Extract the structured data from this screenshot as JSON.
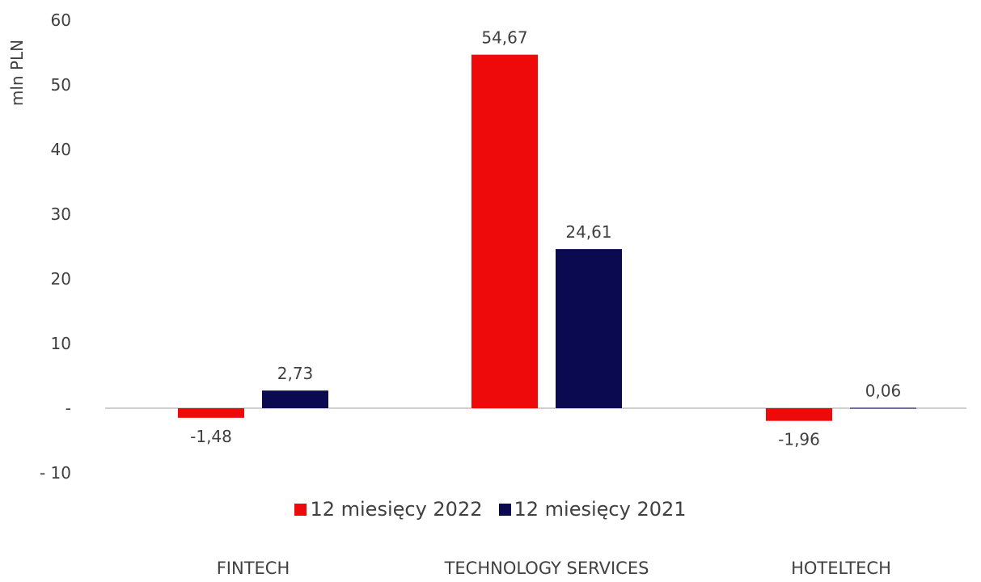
{
  "chart_data": {
    "type": "bar",
    "categories": [
      "FINTECH",
      "TECHNOLOGY SERVICES",
      "HOTELTECH"
    ],
    "series": [
      {
        "name": "12 miesięcy 2022",
        "values": [
          -1.48,
          54.67,
          -1.96
        ],
        "labels": [
          "-1,48",
          "54,67",
          "-1,96"
        ],
        "color": "#EE0A0A"
      },
      {
        "name": "12 miesięcy 2021",
        "values": [
          2.73,
          24.61,
          0.06
        ],
        "labels": [
          "2,73",
          "24,61",
          "0,06"
        ],
        "color": "#0B0A50"
      }
    ],
    "ylabel": "mln PLN",
    "ylim": [
      -10,
      60
    ],
    "yticks": [
      {
        "value": 60,
        "label": "60"
      },
      {
        "value": 50,
        "label": "50"
      },
      {
        "value": 40,
        "label": "40"
      },
      {
        "value": 30,
        "label": "30"
      },
      {
        "value": 20,
        "label": "20"
      },
      {
        "value": 10,
        "label": "10"
      },
      {
        "value": 0,
        "label": "-"
      },
      {
        "value": -10,
        "label": "- 10"
      }
    ],
    "grid": false,
    "legend_position": "bottom"
  }
}
